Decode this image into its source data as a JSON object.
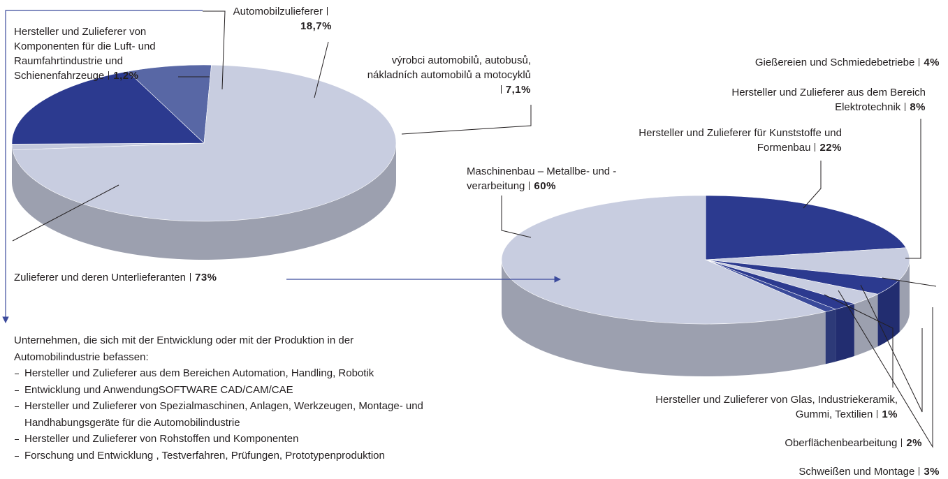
{
  "chart_data": [
    {
      "type": "pie",
      "categories": [
        "Hersteller und Zulieferer von Komponenten für die Luft- und Raumfahrtindustrie und Schienenfahrzeuge",
        "Automobilzulieferer",
        "výrobci automobilů, autobusů, nákladních automobilů a motocyklů",
        "Zulieferer und deren Unterlieferanten"
      ],
      "values": [
        1.2,
        18.7,
        7.1,
        73
      ],
      "value_labels": [
        "1,2%",
        "18,7%",
        "7,1%",
        "73%"
      ],
      "colors": [
        "#c3c8dc",
        "#2c3a8f",
        "#5867a5",
        "#c8cde0"
      ]
    },
    {
      "type": "pie",
      "categories": [
        "Hersteller und Zulieferer für Kunststoffe und Formenbau",
        "Hersteller und Zulieferer aus dem Bereich Elektrotechnik",
        "Gießereien und Schmiedebetriebe",
        "Schweißen und Montage",
        "Oberflächenbearbeitung",
        "Hersteller und Zulieferer von Glas, Industriekeramik, Gummi, Textilien",
        "Maschinenbau – Metallbe- und -verarbeitung"
      ],
      "values": [
        22,
        8,
        4,
        3,
        2,
        1,
        60
      ],
      "value_labels": [
        "22%",
        "8%",
        "4%",
        "3%",
        "2%",
        "1%",
        "60%"
      ],
      "colors": [
        "#2c3a8f",
        "#c8cde0",
        "#2c3a8f",
        "#c8cde0",
        "#2c3a8f",
        "#3a4a9a",
        "#c8cde0"
      ]
    }
  ],
  "note": {
    "intro": "Unternehmen, die sich mit der Entwicklung oder mit der Produktion in der Automobilindustrie befassen:",
    "items": [
      "Hersteller und Zulieferer aus dem Bereichen Automation, Handling, Robotik",
      "Entwicklung und AnwendungSOFTWARE CAD/CAM/CAE",
      "Hersteller und Zulieferer von Spezialmaschinen, Anlagen, Werkzeugen, Montage- und Handhabungsgeräte für die Automobilindustrie",
      "Hersteller und Zulieferer von Rohstoffen und Komponenten",
      "Forschung und Entwicklung , Testverfahren, Prüfungen, Prototypenproduktion"
    ]
  }
}
